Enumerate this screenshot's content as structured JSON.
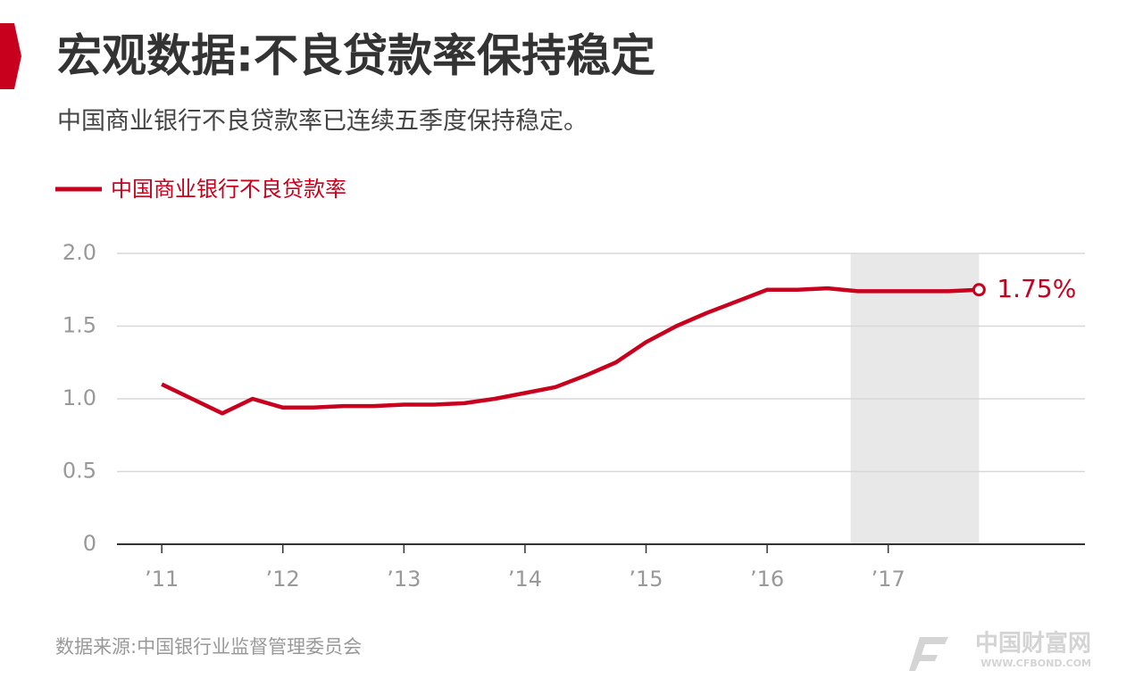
{
  "chart_data": {
    "type": "line",
    "title": "宏观数据:不良贷款率保持稳定",
    "subtitle": "中国商业银行不良贷款率已连续五季度保持稳定。",
    "source": "数据来源:中国银行业监督管理委员会",
    "logo": {
      "name": "中国财富网",
      "url": "WWW.CFBOND.COM"
    },
    "x": [
      2011,
      2011.25,
      2011.5,
      2011.75,
      2012,
      2012.25,
      2012.5,
      2012.75,
      2013,
      2013.25,
      2013.5,
      2013.75,
      2014,
      2014.25,
      2014.5,
      2014.75,
      2015,
      2015.25,
      2015.5,
      2015.75,
      2016,
      2016.25,
      2016.5,
      2016.75,
      2017,
      2017.25,
      2017.5,
      2017.75
    ],
    "series": [
      {
        "name": "中国商业银行不良贷款率",
        "color": "#c8001e",
        "values": [
          1.1,
          1.0,
          0.9,
          1.0,
          0.94,
          0.94,
          0.95,
          0.95,
          0.96,
          0.96,
          0.97,
          1.0,
          1.04,
          1.08,
          1.16,
          1.25,
          1.39,
          1.5,
          1.59,
          1.67,
          1.75,
          1.75,
          1.76,
          1.74,
          1.74,
          1.74,
          1.74,
          1.75
        ],
        "value_labels": [
          null,
          null,
          null,
          null,
          null,
          null,
          null,
          null,
          null,
          null,
          null,
          null,
          null,
          null,
          null,
          null,
          null,
          null,
          null,
          null,
          null,
          null,
          null,
          null,
          null,
          null,
          null,
          "1.75%"
        ]
      }
    ],
    "xlim": [
      2010.63,
      2018.625
    ],
    "xticks": [
      {
        "value": 2011,
        "label": "’11"
      },
      {
        "value": 2012,
        "label": "’12"
      },
      {
        "value": 2013,
        "label": "’13"
      },
      {
        "value": 2014,
        "label": "’14"
      },
      {
        "value": 2015,
        "label": "’15"
      },
      {
        "value": 2016,
        "label": "’16"
      },
      {
        "value": 2017,
        "label": "’17"
      }
    ],
    "ylim": [
      0,
      2
    ],
    "yticks": [
      0,
      0.5,
      {
        "value": 1,
        "label": "1.0"
      },
      {
        "value": 1.5,
        "label": "1.5"
      },
      {
        "value": 2,
        "label": "2.0"
      }
    ],
    "highlight": [
      2016.69,
      2017.75
    ],
    "grid": true
  }
}
